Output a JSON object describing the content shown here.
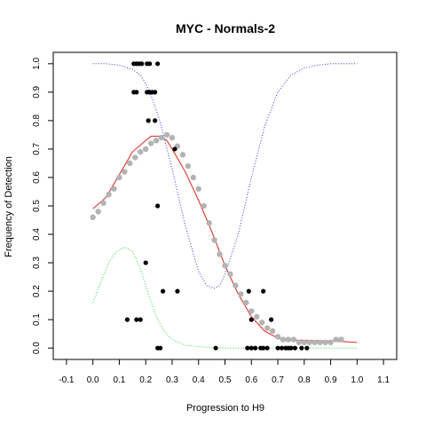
{
  "chart_data": {
    "type": "scatter",
    "title": "MYC - Normals-2",
    "xlabel": "Progression to H9",
    "ylabel": "Frequency of Detection",
    "xlim": [
      -0.15,
      1.15
    ],
    "ylim": [
      -0.04,
      1.04
    ],
    "x_ticks": [
      "-0.1",
      "0.0",
      "0.1",
      "0.2",
      "0.3",
      "0.4",
      "0.5",
      "0.6",
      "0.7",
      "0.8",
      "0.9",
      "1.0",
      "1.1"
    ],
    "y_ticks": [
      "0.0",
      "0.1",
      "0.2",
      "0.3",
      "0.4",
      "0.5",
      "0.6",
      "0.7",
      "0.8",
      "0.9",
      "1.0"
    ],
    "grid": false,
    "observations": {
      "color": "#000000",
      "points": [
        [
          0.155,
          1.0
        ],
        [
          0.165,
          1.0
        ],
        [
          0.175,
          1.0
        ],
        [
          0.185,
          1.0
        ],
        [
          0.205,
          1.0
        ],
        [
          0.215,
          1.0
        ],
        [
          0.245,
          1.0
        ],
        [
          0.155,
          0.9
        ],
        [
          0.165,
          0.9
        ],
        [
          0.205,
          0.9
        ],
        [
          0.215,
          0.9
        ],
        [
          0.225,
          0.9
        ],
        [
          0.235,
          0.9
        ],
        [
          0.21,
          0.8
        ],
        [
          0.235,
          0.8
        ],
        [
          0.31,
          0.7
        ],
        [
          0.245,
          0.5
        ],
        [
          0.2,
          0.3
        ],
        [
          0.265,
          0.2
        ],
        [
          0.32,
          0.2
        ],
        [
          0.59,
          0.2
        ],
        [
          0.645,
          0.2
        ],
        [
          0.13,
          0.1
        ],
        [
          0.165,
          0.1
        ],
        [
          0.18,
          0.1
        ],
        [
          0.6,
          0.1
        ],
        [
          0.675,
          0.1
        ],
        [
          0.245,
          0.0
        ],
        [
          0.255,
          0.0
        ],
        [
          0.465,
          0.0
        ],
        [
          0.585,
          0.0
        ],
        [
          0.6,
          0.0
        ],
        [
          0.615,
          0.0
        ],
        [
          0.635,
          0.0
        ],
        [
          0.645,
          0.0
        ],
        [
          0.66,
          0.0
        ],
        [
          0.7,
          0.0
        ],
        [
          0.715,
          0.0
        ],
        [
          0.73,
          0.0
        ],
        [
          0.74,
          0.0
        ],
        [
          0.75,
          0.0
        ],
        [
          0.765,
          0.0
        ],
        [
          0.79,
          0.0
        ],
        [
          0.81,
          0.0
        ]
      ]
    },
    "smoothed_points": {
      "color": "#b3b3b3",
      "x": [
        0.0,
        0.02,
        0.04,
        0.06,
        0.08,
        0.1,
        0.12,
        0.14,
        0.16,
        0.18,
        0.2,
        0.22,
        0.24,
        0.26,
        0.28,
        0.3,
        0.32,
        0.34,
        0.36,
        0.38,
        0.4,
        0.42,
        0.44,
        0.46,
        0.48,
        0.5,
        0.52,
        0.54,
        0.56,
        0.58,
        0.6,
        0.62,
        0.64,
        0.66,
        0.68,
        0.7,
        0.72,
        0.74,
        0.76,
        0.78,
        0.8,
        0.82,
        0.84,
        0.86,
        0.88,
        0.9,
        0.92,
        0.94
      ],
      "y": [
        0.46,
        0.48,
        0.51,
        0.54,
        0.56,
        0.6,
        0.62,
        0.65,
        0.67,
        0.69,
        0.7,
        0.72,
        0.73,
        0.74,
        0.75,
        0.74,
        0.71,
        0.68,
        0.64,
        0.6,
        0.56,
        0.5,
        0.44,
        0.38,
        0.33,
        0.29,
        0.26,
        0.22,
        0.19,
        0.16,
        0.13,
        0.11,
        0.09,
        0.07,
        0.06,
        0.04,
        0.03,
        0.03,
        0.03,
        0.02,
        0.02,
        0.02,
        0.02,
        0.02,
        0.02,
        0.02,
        0.03,
        0.03
      ]
    },
    "series": [
      {
        "style": "solid",
        "color": "#e0443c",
        "x": [
          0.0,
          0.05,
          0.1,
          0.15,
          0.2,
          0.22,
          0.25,
          0.28,
          0.3,
          0.35,
          0.4,
          0.45,
          0.5,
          0.55,
          0.6,
          0.65,
          0.7,
          0.75,
          0.8,
          0.9,
          1.0
        ],
        "y": [
          0.49,
          0.53,
          0.61,
          0.69,
          0.73,
          0.745,
          0.745,
          0.73,
          0.7,
          0.62,
          0.52,
          0.41,
          0.29,
          0.19,
          0.11,
          0.06,
          0.035,
          0.028,
          0.027,
          0.025,
          0.02
        ]
      },
      {
        "style": "dotted",
        "color": "#3333cc",
        "x": [
          0.0,
          0.05,
          0.1,
          0.15,
          0.18,
          0.2,
          0.22,
          0.25,
          0.3,
          0.35,
          0.4,
          0.43,
          0.46,
          0.48,
          0.5,
          0.55,
          0.6,
          0.65,
          0.7,
          0.75,
          0.8,
          0.85,
          0.9,
          1.0
        ],
        "y": [
          1.0,
          1.0,
          0.995,
          0.98,
          0.96,
          0.93,
          0.89,
          0.81,
          0.63,
          0.43,
          0.27,
          0.22,
          0.21,
          0.22,
          0.26,
          0.4,
          0.6,
          0.78,
          0.9,
          0.96,
          0.985,
          0.995,
          1.0,
          1.0
        ]
      },
      {
        "style": "dotted",
        "color": "#33cc33",
        "x": [
          0.0,
          0.03,
          0.06,
          0.09,
          0.12,
          0.15,
          0.18,
          0.21,
          0.24,
          0.27,
          0.3,
          0.35,
          0.4,
          0.45,
          0.5,
          0.6,
          0.7,
          0.8,
          0.9,
          1.0
        ],
        "y": [
          0.16,
          0.23,
          0.3,
          0.34,
          0.355,
          0.34,
          0.28,
          0.19,
          0.11,
          0.06,
          0.03,
          0.01,
          0.005,
          0.002,
          0.0,
          0.0,
          0.0,
          0.0,
          0.0,
          0.0
        ]
      }
    ]
  }
}
